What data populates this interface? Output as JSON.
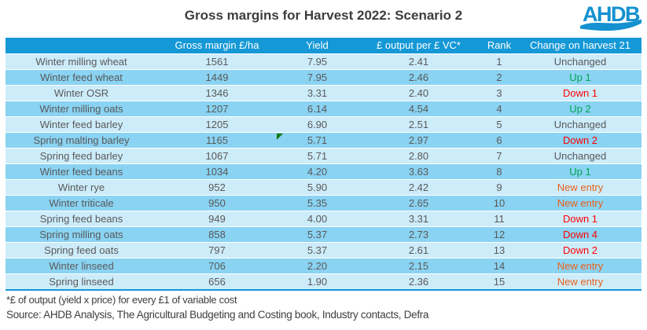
{
  "title": "Gross margins for Harvest 2022: Scenario 2",
  "logo": {
    "text": "AHDB"
  },
  "table": {
    "columns": [
      "",
      "Gross margin £/ha",
      "Yield",
      "£ output per £ VC*",
      "Rank",
      "Change on harvest 21"
    ],
    "rows": [
      {
        "crop": "Winter milling wheat",
        "gross_margin": "1561",
        "yield": "7.95",
        "output_per_vc": "2.41",
        "rank": "1",
        "change": "Unchanged",
        "change_type": "unchanged",
        "comment_flag": false
      },
      {
        "crop": "Winter feed wheat",
        "gross_margin": "1449",
        "yield": "7.95",
        "output_per_vc": "2.46",
        "rank": "2",
        "change": "Up 1",
        "change_type": "up",
        "comment_flag": false
      },
      {
        "crop": "Winter OSR",
        "gross_margin": "1346",
        "yield": "3.31",
        "output_per_vc": "2.40",
        "rank": "3",
        "change": "Down 1",
        "change_type": "down",
        "comment_flag": false
      },
      {
        "crop": "Winter milling oats",
        "gross_margin": "1207",
        "yield": "6.14",
        "output_per_vc": "4.54",
        "rank": "4",
        "change": "Up 2",
        "change_type": "up",
        "comment_flag": false
      },
      {
        "crop": "Winter feed barley",
        "gross_margin": "1205",
        "yield": "6.90",
        "output_per_vc": "2.51",
        "rank": "5",
        "change": "Unchanged",
        "change_type": "unchanged",
        "comment_flag": false
      },
      {
        "crop": "Spring malting barley",
        "gross_margin": "1165",
        "yield": "5.71",
        "output_per_vc": "2.97",
        "rank": "6",
        "change": "Down 2",
        "change_type": "down",
        "comment_flag": true
      },
      {
        "crop": "Spring feed barley",
        "gross_margin": "1067",
        "yield": "5.71",
        "output_per_vc": "2.80",
        "rank": "7",
        "change": "Unchanged",
        "change_type": "unchanged",
        "comment_flag": false
      },
      {
        "crop": "Winter feed beans",
        "gross_margin": "1034",
        "yield": "4.20",
        "output_per_vc": "3.63",
        "rank": "8",
        "change": "Up 1",
        "change_type": "up",
        "comment_flag": false
      },
      {
        "crop": "Winter rye",
        "gross_margin": "952",
        "yield": "5.90",
        "output_per_vc": "2.42",
        "rank": "9",
        "change": "New entry",
        "change_type": "new",
        "comment_flag": false
      },
      {
        "crop": "Winter triticale",
        "gross_margin": "950",
        "yield": "5.35",
        "output_per_vc": "2.65",
        "rank": "10",
        "change": "New entry",
        "change_type": "new",
        "comment_flag": false
      },
      {
        "crop": "Spring feed beans",
        "gross_margin": "949",
        "yield": "4.00",
        "output_per_vc": "3.31",
        "rank": "11",
        "change": "Down 1",
        "change_type": "down",
        "comment_flag": false
      },
      {
        "crop": "Spring milling oats",
        "gross_margin": "858",
        "yield": "5.37",
        "output_per_vc": "2.73",
        "rank": "12",
        "change": "Down 4",
        "change_type": "down",
        "comment_flag": false
      },
      {
        "crop": "Spring feed oats",
        "gross_margin": "797",
        "yield": "5.37",
        "output_per_vc": "2.61",
        "rank": "13",
        "change": "Down 2",
        "change_type": "down",
        "comment_flag": false
      },
      {
        "crop": "Winter linseed",
        "gross_margin": "706",
        "yield": "2.20",
        "output_per_vc": "2.15",
        "rank": "14",
        "change": "New entry",
        "change_type": "new",
        "comment_flag": false
      },
      {
        "crop": "Spring linseed",
        "gross_margin": "656",
        "yield": "1.90",
        "output_per_vc": "2.36",
        "rank": "15",
        "change": "New entry",
        "change_type": "new",
        "comment_flag": false
      }
    ]
  },
  "footnote": "*£ of output (yield x price) for every £1 of variable cost",
  "source": "Source: AHDB Analysis, The Agricultural Budgeting and Costing book, Industry contacts, Defra",
  "colors": {
    "header_blue": "#1598d6",
    "row_light": "#cdecfa",
    "row_dark": "#8ad3f2",
    "cell_text": "#595959",
    "up_green": "#00a651",
    "down_red": "#fe0000",
    "new_orange": "#e8601c",
    "flag_green": "#107c10",
    "logo_blue": "#1491d0"
  }
}
